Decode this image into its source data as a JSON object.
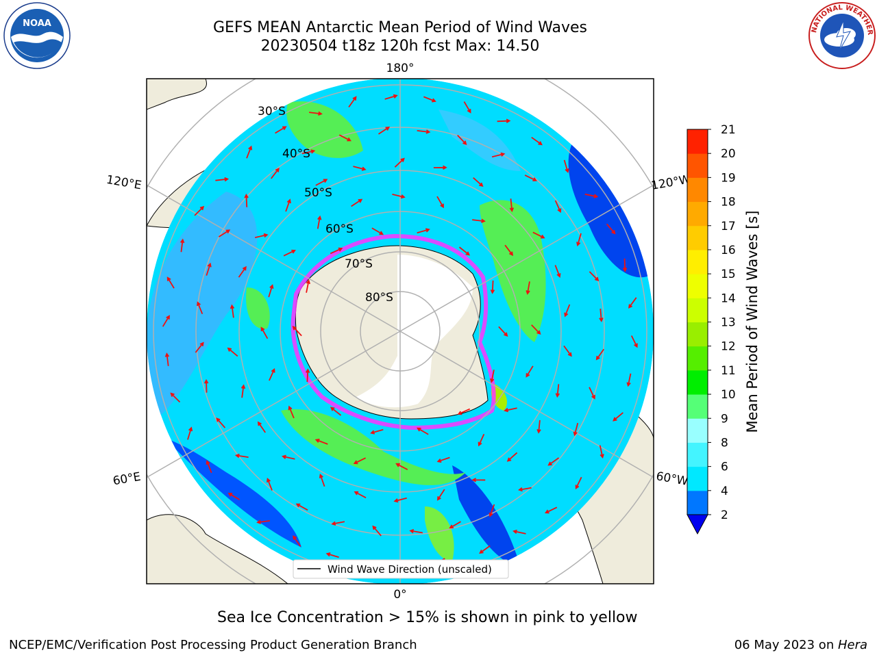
{
  "title": {
    "line1": "GEFS MEAN Antarctic Mean Period of Wind Waves",
    "line2": "20230504 t18z 120h fcst   Max: 14.50"
  },
  "map": {
    "projection": "south-polar-stereographic",
    "meridian_labels": [
      "180°",
      "120°E",
      "120°W",
      "60°E",
      "60°W",
      "0°"
    ],
    "parallel_labels": [
      "30°S",
      "40°S",
      "50°S",
      "60°S",
      "70°S",
      "80°S"
    ],
    "land_color": "#efecdc",
    "graticule_color": "#b0b0b0",
    "arrow_color": "#ee1111",
    "ice_color_range": [
      "#ff33ff",
      "#ffff66"
    ]
  },
  "legend": {
    "label": "Wind Wave Direction (unscaled)"
  },
  "colorbar": {
    "label": "Mean Period of Wind Waves [s]",
    "ticks": [
      "2",
      "4",
      "6",
      "8",
      "9",
      "10",
      "11",
      "12",
      "13",
      "14",
      "15",
      "16",
      "17",
      "18",
      "19",
      "20",
      "21"
    ],
    "colors": [
      "#0077ff",
      "#00e8ff",
      "#44f4ff",
      "#99ffff",
      "#55ff77",
      "#00ee00",
      "#55ee00",
      "#99ee00",
      "#ccff00",
      "#eeff00",
      "#ffee00",
      "#ffcc00",
      "#ffaa00",
      "#ff8800",
      "#ff5500",
      "#ff2200"
    ],
    "under_color": "#0000ee"
  },
  "caption": "Sea Ice Concentration > 15% is shown in pink to yellow",
  "footer": {
    "left": "NCEP/EMC/Verification Post Processing Product Generation Branch",
    "date": "06 May 2023 on ",
    "machine": "Hera"
  },
  "logos": {
    "noaa_text": "NOAA",
    "nws_text": "NATIONAL WEATHER SERVICE"
  }
}
